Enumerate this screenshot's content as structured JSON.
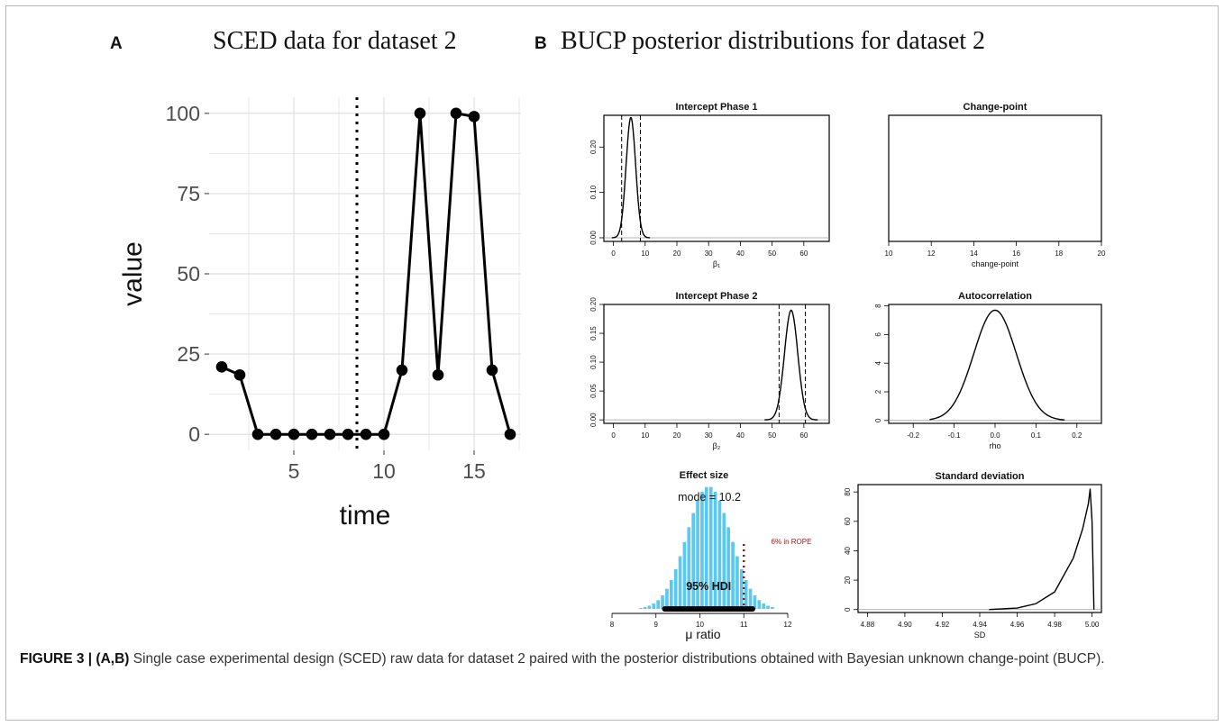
{
  "panel_a": {
    "letter": "A",
    "title": "SCED data for dataset 2"
  },
  "panel_b": {
    "letter": "B",
    "title": "BUCP posterior distributions for dataset 2"
  },
  "caption": {
    "label": "FIGURE 3 | (A,B)",
    "text": " Single case experimental design (SCED) raw data for dataset 2 paired with the posterior distributions obtained with Bayesian unknown change-point (BUCP)."
  },
  "colors": {
    "line": "#000000",
    "grid": "#e3e3e3",
    "histogram": "#5bc8ef",
    "rope_text": "#8b1a1a"
  },
  "chart_data": [
    {
      "id": "sced",
      "type": "line",
      "xlabel": "time",
      "ylabel": "value",
      "xlim": [
        0.3,
        17.6
      ],
      "ylim": [
        -5,
        105
      ],
      "x_ticks": [
        5,
        10,
        15
      ],
      "y_ticks": [
        0,
        25,
        50,
        75,
        100
      ],
      "grid": true,
      "phase_change_x": 8.5,
      "x": [
        1,
        2,
        3,
        4,
        5,
        6,
        7,
        8,
        9,
        10,
        11,
        12,
        13,
        14,
        15,
        16,
        17
      ],
      "y": [
        21,
        18.5,
        0,
        0,
        0,
        0,
        0,
        0,
        0,
        0,
        20,
        100,
        18.5,
        100,
        99,
        20,
        0
      ]
    },
    {
      "id": "intercept1",
      "type": "line",
      "title": "Intercept Phase 1",
      "xlabel": "β₁",
      "xlim": [
        -3,
        68
      ],
      "ylim": [
        -0.008,
        0.27
      ],
      "x_ticks": [
        0,
        10,
        20,
        30,
        40,
        50,
        60
      ],
      "y_ticks": [
        0.0,
        0.1,
        0.2
      ],
      "y_tick_labels": [
        "0.00",
        "0.10",
        "0.20"
      ],
      "density": {
        "mean": 5.5,
        "sd": 1.5,
        "peak": 0.265
      },
      "hdi": [
        2.6,
        8.5
      ]
    },
    {
      "id": "changepoint",
      "type": "line",
      "title": "Change-point",
      "xlabel": "change-point",
      "xlim": [
        10,
        20
      ],
      "x_ticks": [
        10,
        12,
        14,
        16,
        18,
        20
      ]
    },
    {
      "id": "intercept2",
      "type": "line",
      "title": "Intercept Phase 2",
      "xlabel": "β₂",
      "xlim": [
        -3,
        68
      ],
      "ylim": [
        -0.006,
        0.2
      ],
      "x_ticks": [
        0,
        10,
        20,
        30,
        40,
        50,
        60
      ],
      "y_ticks": [
        0,
        0.05,
        0.1,
        0.15,
        0.2
      ],
      "y_tick_labels": [
        "0.00",
        "0.05",
        "0.10",
        "0.15",
        "0.20"
      ],
      "density": {
        "mean": 56,
        "sd": 2.1,
        "peak": 0.19
      },
      "hdi": [
        52.2,
        60.5
      ]
    },
    {
      "id": "autocorrelation",
      "type": "line",
      "title": "Autocorrelation",
      "xlabel": "rho",
      "xlim": [
        -0.26,
        0.26
      ],
      "ylim": [
        -0.2,
        8.1
      ],
      "x_ticks": [
        -0.2,
        -0.1,
        0.0,
        0.1,
        0.2
      ],
      "x_tick_labels": [
        "-0.2",
        "-0.1",
        "0.0",
        "0.1",
        "0.2"
      ],
      "y_ticks": [
        0,
        2,
        4,
        6,
        8
      ],
      "density": {
        "mean": 0.0,
        "sd": 0.052,
        "peak": 7.7,
        "from": -0.16,
        "to": 0.17
      }
    },
    {
      "id": "effect_size",
      "type": "bar",
      "title": "Effect size",
      "xlabel": "μ ratio",
      "xlim": [
        8,
        12
      ],
      "x_ticks": [
        8,
        9,
        10,
        11,
        12
      ],
      "mode_label": "mode = 10.2",
      "hdi_label": "95% HDI",
      "hdi": [
        9.2,
        11.2
      ],
      "rope_x": 11.0,
      "rope_label": "6% in ROPE",
      "histogram": {
        "mean": 10.2,
        "sd": 0.5,
        "bin_width": 0.1,
        "from": 8.6,
        "to": 11.7
      }
    },
    {
      "id": "standard_deviation",
      "type": "line",
      "title": "Standard deviation",
      "xlabel": "SD",
      "xlim": [
        4.875,
        5.005
      ],
      "ylim": [
        -2,
        85
      ],
      "x_ticks": [
        4.88,
        4.9,
        4.92,
        4.94,
        4.96,
        4.98,
        5.0
      ],
      "x_tick_labels": [
        "4.88",
        "4.90",
        "4.92",
        "4.94",
        "4.96",
        "4.98",
        "5.00"
      ],
      "y_ticks": [
        0,
        20,
        40,
        60,
        80
      ],
      "curve": {
        "x": [
          4.945,
          4.96,
          4.97,
          4.98,
          4.99,
          4.995,
          4.998,
          4.999,
          5.0,
          5.001
        ],
        "y": [
          0,
          1,
          4,
          12,
          35,
          55,
          72,
          82,
          60,
          0
        ]
      }
    }
  ]
}
